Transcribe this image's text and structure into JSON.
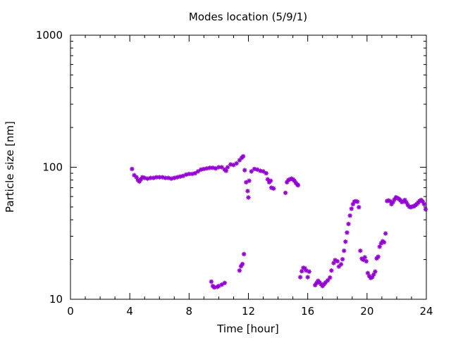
{
  "chart_data": {
    "type": "scatter",
    "title": "Modes location (5/9/1)",
    "xlabel": "Time [hour]",
    "ylabel": "Particle size [nm]",
    "xlim": [
      0,
      24
    ],
    "ylim": [
      10,
      1000
    ],
    "yscale": "log",
    "grid": false,
    "legend": "none",
    "xticks": [
      0,
      4,
      8,
      12,
      16,
      20,
      24
    ],
    "xtick_labels": [
      "0",
      "4",
      "8",
      "12",
      "16",
      "20",
      "24"
    ],
    "yticks": [
      10,
      100,
      1000
    ],
    "ytick_labels": [
      "10",
      "100",
      "1000"
    ],
    "marker": "asterisk",
    "color": "#9400d3",
    "series": [
      {
        "values": [
          [
            4.15,
            97
          ],
          [
            4.3,
            87
          ],
          [
            4.45,
            84
          ],
          [
            4.55,
            80
          ],
          [
            4.65,
            78
          ],
          [
            4.75,
            81
          ],
          [
            4.85,
            84
          ],
          [
            5.0,
            83
          ],
          [
            5.2,
            82
          ],
          [
            5.4,
            83
          ],
          [
            5.6,
            83
          ],
          [
            5.8,
            84
          ],
          [
            6.0,
            84
          ],
          [
            6.2,
            84
          ],
          [
            6.4,
            83
          ],
          [
            6.6,
            83
          ],
          [
            6.8,
            82
          ],
          [
            7.0,
            83
          ],
          [
            7.2,
            84
          ],
          [
            7.4,
            85
          ],
          [
            7.6,
            86
          ],
          [
            7.8,
            88
          ],
          [
            8.0,
            89
          ],
          [
            8.2,
            89
          ],
          [
            8.4,
            90
          ],
          [
            8.6,
            93
          ],
          [
            8.8,
            96
          ],
          [
            9.0,
            97
          ],
          [
            9.2,
            98
          ],
          [
            9.4,
            99
          ],
          [
            9.6,
            99
          ],
          [
            9.8,
            98
          ],
          [
            10.0,
            100
          ],
          [
            10.2,
            100
          ],
          [
            10.4,
            96
          ],
          [
            10.5,
            94
          ],
          [
            10.6,
            100
          ],
          [
            10.8,
            105
          ],
          [
            11.0,
            104
          ],
          [
            11.2,
            107
          ],
          [
            11.4,
            113
          ],
          [
            11.55,
            118
          ],
          [
            11.65,
            121
          ],
          [
            11.75,
            95
          ],
          [
            11.85,
            77
          ],
          [
            11.95,
            66
          ],
          [
            12.0,
            59
          ],
          [
            12.05,
            79
          ],
          [
            12.2,
            93
          ],
          [
            12.4,
            97
          ],
          [
            12.6,
            96
          ],
          [
            12.8,
            94
          ],
          [
            13.0,
            93
          ],
          [
            13.2,
            90
          ],
          [
            13.3,
            81
          ],
          [
            13.4,
            77
          ],
          [
            13.5,
            79
          ],
          [
            13.55,
            70
          ],
          [
            13.7,
            69
          ],
          [
            14.5,
            64
          ],
          [
            14.6,
            77
          ],
          [
            14.7,
            80
          ],
          [
            14.8,
            81
          ],
          [
            14.9,
            82
          ],
          [
            15.0,
            81
          ],
          [
            15.1,
            79
          ],
          [
            15.2,
            76
          ],
          [
            15.3,
            74
          ],
          [
            15.35,
            73
          ],
          [
            9.5,
            13.6
          ],
          [
            9.6,
            12.6
          ],
          [
            9.7,
            12.3
          ],
          [
            9.9,
            12.4
          ],
          [
            10.0,
            12.6
          ],
          [
            10.2,
            12.9
          ],
          [
            10.4,
            13.3
          ],
          [
            11.4,
            16.5
          ],
          [
            11.5,
            17.8
          ],
          [
            11.6,
            18.5
          ],
          [
            11.7,
            22.0
          ],
          [
            15.5,
            14.7
          ],
          [
            15.6,
            16.3
          ],
          [
            15.7,
            17.3
          ],
          [
            15.8,
            17.2
          ],
          [
            15.9,
            16.5
          ],
          [
            16.0,
            14.7
          ],
          [
            16.1,
            16.2
          ],
          [
            16.5,
            12.8
          ],
          [
            16.6,
            13.3
          ],
          [
            16.7,
            13.8
          ],
          [
            16.8,
            13.4
          ],
          [
            16.9,
            13.0
          ],
          [
            17.0,
            12.6
          ],
          [
            17.1,
            13.0
          ],
          [
            17.2,
            13.4
          ],
          [
            17.35,
            13.9
          ],
          [
            17.5,
            14.6
          ],
          [
            17.6,
            16.5
          ],
          [
            17.75,
            18.8
          ],
          [
            17.85,
            19.8
          ],
          [
            18.0,
            19.4
          ],
          [
            18.1,
            17.7
          ],
          [
            18.25,
            18.4
          ],
          [
            18.35,
            20.1
          ],
          [
            18.45,
            23.3
          ],
          [
            18.55,
            27.3
          ],
          [
            18.65,
            32.0
          ],
          [
            18.75,
            37.2
          ],
          [
            18.85,
            43.0
          ],
          [
            18.95,
            48.5
          ],
          [
            19.05,
            52.5
          ],
          [
            19.15,
            55.0
          ],
          [
            19.25,
            55.3
          ],
          [
            19.35,
            54.8
          ],
          [
            19.45,
            49.8
          ],
          [
            19.55,
            23.3
          ],
          [
            19.65,
            20.3
          ],
          [
            19.75,
            19.9
          ],
          [
            19.85,
            20.8
          ],
          [
            19.95,
            19.4
          ],
          [
            20.05,
            15.8
          ],
          [
            20.15,
            15.0
          ],
          [
            20.25,
            14.5
          ],
          [
            20.35,
            14.7
          ],
          [
            20.45,
            15.4
          ],
          [
            20.55,
            16.2
          ],
          [
            20.65,
            20.4
          ],
          [
            20.75,
            21.0
          ],
          [
            20.85,
            25.0
          ],
          [
            20.95,
            26.5
          ],
          [
            21.05,
            27.5
          ],
          [
            21.15,
            27.0
          ],
          [
            21.25,
            31.5
          ],
          [
            21.35,
            55.5
          ],
          [
            21.45,
            56.0
          ],
          [
            21.55,
            55.3
          ],
          [
            21.65,
            52.5
          ],
          [
            21.75,
            54.5
          ],
          [
            21.85,
            57.0
          ],
          [
            21.95,
            59.2
          ],
          [
            22.05,
            58.5
          ],
          [
            22.15,
            57.5
          ],
          [
            22.25,
            56.2
          ],
          [
            22.35,
            54.5
          ],
          [
            22.45,
            55.0
          ],
          [
            22.55,
            56.5
          ],
          [
            22.65,
            54.2
          ],
          [
            22.75,
            51.8
          ],
          [
            22.85,
            50.2
          ],
          [
            22.95,
            49.8
          ],
          [
            23.05,
            50.4
          ],
          [
            23.15,
            50.5
          ],
          [
            23.25,
            51.5
          ],
          [
            23.35,
            52.5
          ],
          [
            23.45,
            54.0
          ],
          [
            23.55,
            55.5
          ],
          [
            23.65,
            56.5
          ],
          [
            23.75,
            55.0
          ],
          [
            23.85,
            52.5
          ],
          [
            23.95,
            48.0
          ]
        ]
      }
    ]
  }
}
